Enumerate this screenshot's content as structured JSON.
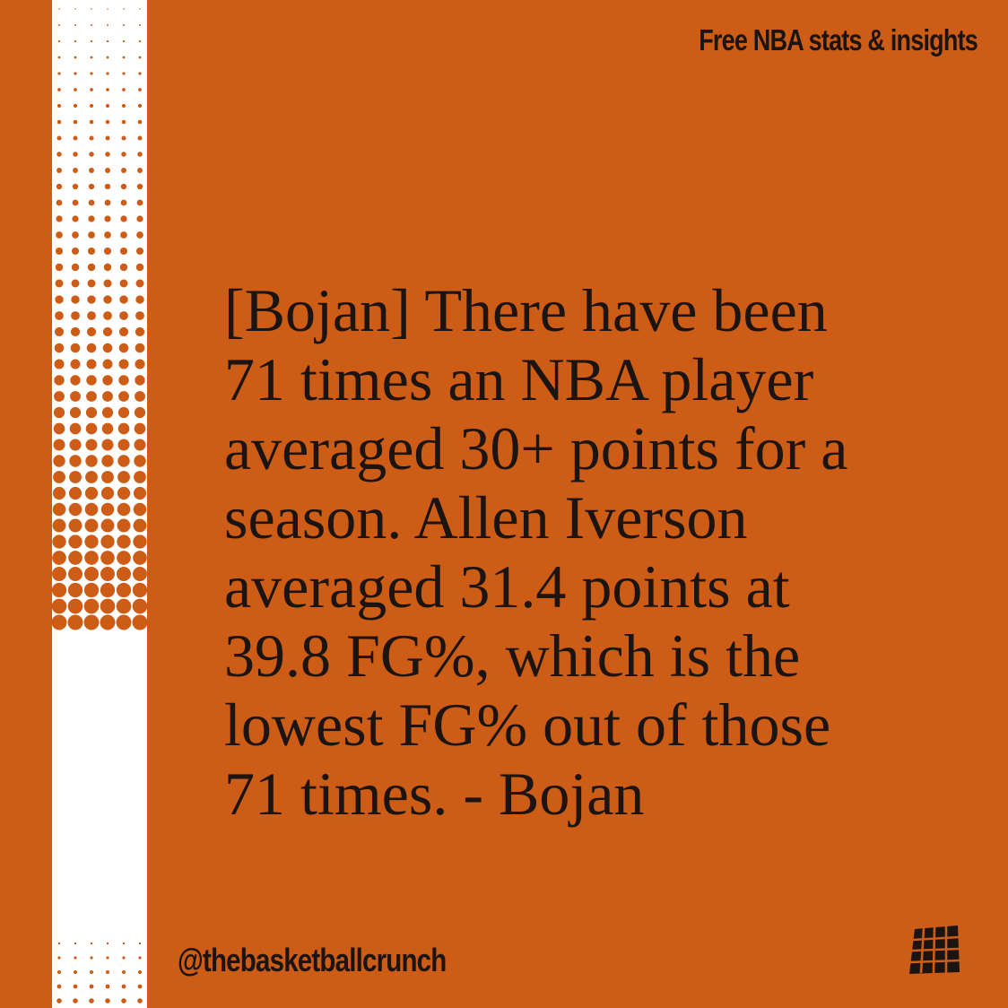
{
  "header": {
    "tagline": "Free NBA stats & insights"
  },
  "main": {
    "quote": "[Bojan] There have been 71 times an NBA player averaged 30+ points for a season. Allen Iverson averaged 31.4 points at 39.8 FG%, which is the lowest FG% out of those 71 times. - Bojan"
  },
  "footer": {
    "handle": "@thebasketballcrunch",
    "logo_icon": "basketball-net-icon"
  },
  "colors": {
    "background": "#cd5c17",
    "text": "#1c1410",
    "halftone": "#ffffff"
  }
}
